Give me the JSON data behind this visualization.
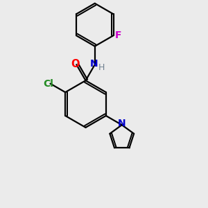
{
  "bg_color": "#ebebeb",
  "bond_color": "#000000",
  "bond_width": 1.6,
  "atom_colors": {
    "H": "#708090",
    "N_amide": "#0000cd",
    "N_pyrrole": "#0000cd",
    "O": "#ff0000",
    "Cl": "#228b22",
    "F": "#cc00cc"
  },
  "font_size": 9.5
}
